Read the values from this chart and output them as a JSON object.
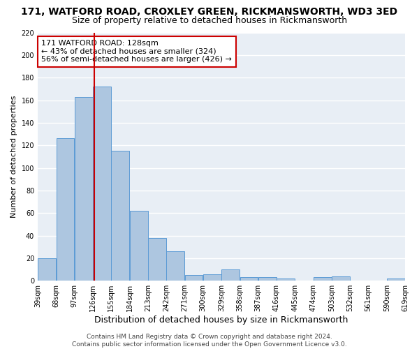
{
  "title": "171, WATFORD ROAD, CROXLEY GREEN, RICKMANSWORTH, WD3 3ED",
  "subtitle": "Size of property relative to detached houses in Rickmansworth",
  "xlabel": "Distribution of detached houses by size in Rickmansworth",
  "ylabel": "Number of detached properties",
  "bins": [
    39,
    68,
    97,
    126,
    155,
    184,
    213,
    242,
    271,
    300,
    329,
    358,
    387,
    416,
    445,
    474,
    503,
    532,
    561,
    590,
    619
  ],
  "bar_heights": [
    20,
    126,
    163,
    172,
    115,
    62,
    38,
    26,
    5,
    6,
    10,
    3,
    3,
    2,
    0,
    3,
    4,
    0,
    0,
    2
  ],
  "bar_color": "#adc6e0",
  "bar_edge_color": "#5b9bd5",
  "bg_color": "#e8eef5",
  "grid_color": "#ffffff",
  "vline_x": 128,
  "vline_color": "#cc0000",
  "ylim": [
    0,
    220
  ],
  "yticks": [
    0,
    20,
    40,
    60,
    80,
    100,
    120,
    140,
    160,
    180,
    200,
    220
  ],
  "tick_labels": [
    "39sqm",
    "68sqm",
    "97sqm",
    "126sqm",
    "155sqm",
    "184sqm",
    "213sqm",
    "242sqm",
    "271sqm",
    "300sqm",
    "329sqm",
    "358sqm",
    "387sqm",
    "416sqm",
    "445sqm",
    "474sqm",
    "503sqm",
    "532sqm",
    "561sqm",
    "590sqm",
    "619sqm"
  ],
  "annotation_title": "171 WATFORD ROAD: 128sqm",
  "annotation_line1": "← 43% of detached houses are smaller (324)",
  "annotation_line2": "56% of semi-detached houses are larger (426) →",
  "annotation_box_color": "#ffffff",
  "annotation_border_color": "#cc0000",
  "footer_line1": "Contains HM Land Registry data © Crown copyright and database right 2024.",
  "footer_line2": "Contains public sector information licensed under the Open Government Licence v3.0.",
  "title_fontsize": 10,
  "subtitle_fontsize": 9,
  "xlabel_fontsize": 9,
  "ylabel_fontsize": 8,
  "tick_fontsize": 7,
  "annotation_fontsize": 8,
  "footer_fontsize": 6.5
}
